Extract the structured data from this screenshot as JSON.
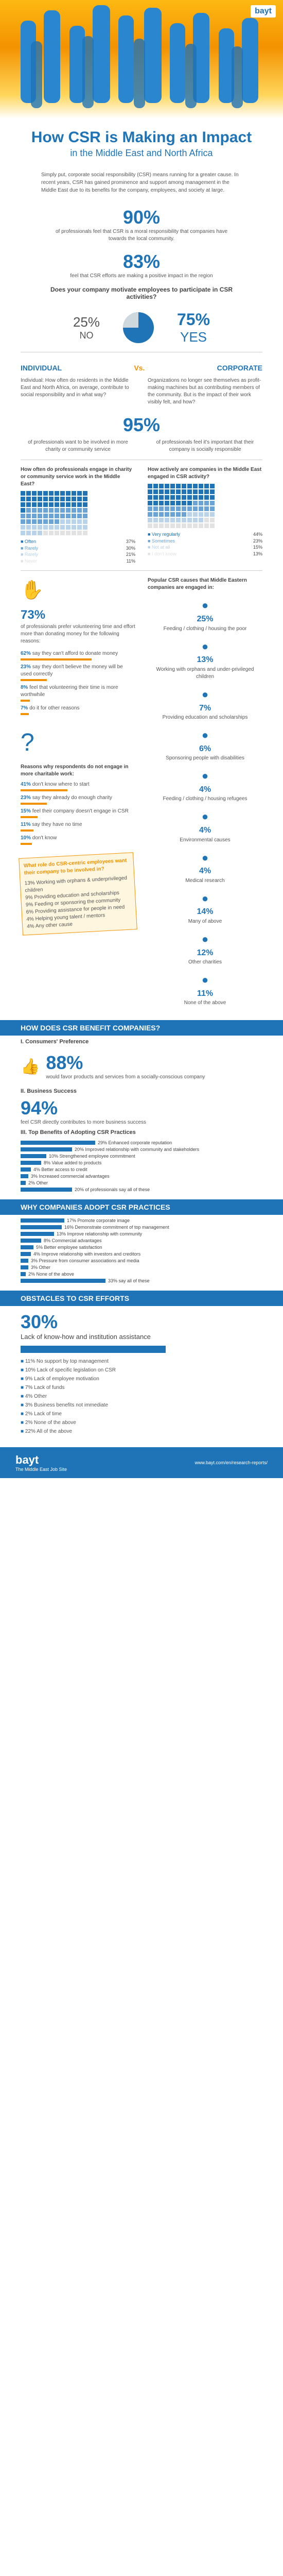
{
  "brand": {
    "logo": "bayt"
  },
  "title": {
    "main": "How CSR is Making an Impact",
    "sub": "in the Middle East and North Africa"
  },
  "intro": "Simply put, corporate social responsibility (CSR) means running for a greater cause. In recent years, CSR has gained prominence and support among management in the Middle East due to its benefits for the company, employees, and society at large.",
  "stats": [
    {
      "value": "90%",
      "text": "of professionals feel that CSR is a moral responsibility that companies have towards the local community."
    },
    {
      "value": "83%",
      "text": "feel that CSR efforts are making a positive impact in the region"
    }
  ],
  "motivate": {
    "question": "Does your company motivate employees to participate in CSR activities?",
    "no_value": "25%",
    "no_label": "NO",
    "yes_value": "75%",
    "yes_label": "YES"
  },
  "ivc": {
    "left": "INDIVIDUAL",
    "vs": "Vs.",
    "right": "CORPORATE"
  },
  "ivc_text": {
    "left": "Individual: How often do residents in the Middle East and North Africa, on average, contribute to social responsibility and in what way?",
    "right": "Organizations no longer see themselves as profit-making machines but as contributing members of the community. But is the impact of their work visibly felt, and how?"
  },
  "p95": {
    "value": "95%",
    "left": "of professionals want to be involved in more charity or community service",
    "right": "of professionals feel it's important that their company is socially responsible"
  },
  "engage": {
    "left_title": "How often do professionals engage in charity or community service work in the Middle East?",
    "left": [
      {
        "label": "Often",
        "v": "37%"
      },
      {
        "label": "Rarely",
        "v": "30%"
      },
      {
        "label": "Rarely",
        "v": "21%"
      },
      {
        "label": "Never",
        "v": "11%"
      }
    ],
    "right_title": "How actively are companies in the Middle East engaged in CSR activity?",
    "right": [
      {
        "label": "Very regularly",
        "v": "44%"
      },
      {
        "label": "Sometimes",
        "v": "23%"
      },
      {
        "label": "Not at all",
        "v": "15%"
      },
      {
        "label": "I don't know",
        "v": "13%"
      }
    ]
  },
  "volunteer": {
    "value": "73%",
    "text": "of professionals prefer volunteering time and effort more than donating money for the following reasons:",
    "reasons": [
      {
        "v": "62%",
        "t": "say they can't afford to donate money"
      },
      {
        "v": "23%",
        "t": "say they don't believe the money will be used correctly"
      },
      {
        "v": "8%",
        "t": "feel that volunteering their time is more worthwhile"
      },
      {
        "v": "7%",
        "t": "do it for other reasons"
      }
    ]
  },
  "notengage": {
    "title": "Reasons why respondents do not engage in more charitable work:",
    "items": [
      {
        "v": "41%",
        "t": "don't know where to start"
      },
      {
        "v": "23%",
        "t": "say they already do enough charity"
      },
      {
        "v": "15%",
        "t": "feel their company doesn't engage in CSR"
      },
      {
        "v": "11%",
        "t": "say they have no time"
      },
      {
        "v": "10%",
        "t": "don't know"
      }
    ]
  },
  "causes": {
    "title": "Popular CSR causes that Middle Eastern companies are engaged in:",
    "items": [
      {
        "v": "25%",
        "t": "Feeding / clothing / housing the poor"
      },
      {
        "v": "13%",
        "t": "Working with orphans and under-privileged children"
      },
      {
        "v": "7%",
        "t": "Providing education and scholarships"
      },
      {
        "v": "6%",
        "t": "Sponsoring people with disabilities"
      },
      {
        "v": "4%",
        "t": "Feeding / clothing / housing refugees"
      },
      {
        "v": "4%",
        "t": "Environmental causes"
      },
      {
        "v": "4%",
        "t": "Medical research"
      },
      {
        "v": "14%",
        "t": "Many of above"
      },
      {
        "v": "12%",
        "t": "Other charities"
      },
      {
        "v": "11%",
        "t": "None of the above"
      }
    ]
  },
  "csr_role": {
    "title": "What role do CSR-centric employees want their company to be involved in?",
    "items": [
      "13% Working with orphans & underprivileged children",
      "9% Providing education and scholarships",
      "9% Feeding or sponsoring the community",
      "6% Providing assistance for people in need",
      "4% Helping young talent / mentors",
      "4% Any other cause"
    ]
  },
  "benefit": {
    "heading": "HOW DOES CSR BENEFIT COMPANIES?",
    "s1": "I. Consumers' Preference",
    "s1v": "88%",
    "s1t": "would favor products and services from a socially-conscious company",
    "s2": "II. Business Success",
    "s2v": "94%",
    "s2t": "feel CSR directly contributes to more business success",
    "s3": "III. Top Benefits of Adopting CSR Practices",
    "bars": [
      {
        "v": 29,
        "t": "29% Enhanced corporate reputation"
      },
      {
        "v": 20,
        "t": "20% Improved relationship with community and stakeholders"
      },
      {
        "v": 10,
        "t": "10% Strengthened employee commitment"
      },
      {
        "v": 8,
        "t": "8% Value added to products"
      },
      {
        "v": 4,
        "t": "4% Better access to credit"
      },
      {
        "v": 3,
        "t": "3% Increased commercial advantages"
      },
      {
        "v": 2,
        "t": "2% Other"
      },
      {
        "v": 20,
        "t": "20% of professionals say all of these"
      }
    ]
  },
  "why": {
    "heading": "WHY COMPANIES ADOPT CSR PRACTICES",
    "bars": [
      {
        "v": 17,
        "t": "17% Promote corporate image"
      },
      {
        "v": 16,
        "t": "16% Demonstrate commitment of top management"
      },
      {
        "v": 13,
        "t": "13% Improve relationship with community"
      },
      {
        "v": 8,
        "t": "8% Commercial advantages"
      },
      {
        "v": 5,
        "t": "5% Better employee satisfaction"
      },
      {
        "v": 4,
        "t": "4% Improve relationship with investors and creditors"
      },
      {
        "v": 3,
        "t": "3% Pressure from consumer associations and media"
      },
      {
        "v": 3,
        "t": "3% Other"
      },
      {
        "v": 2,
        "t": "2% None of the above"
      },
      {
        "v": 33,
        "t": "33% say all of these"
      }
    ]
  },
  "obstacles": {
    "heading": "OBSTACLES TO CSR EFFORTS",
    "top_v": "30%",
    "top_t": "Lack of know-how and institution assistance",
    "items": [
      "11% No support by top management",
      "10% Lack of specific legislation on CSR",
      "9% Lack of employee motivation",
      "7% Lack of funds",
      "4% Other",
      "3% Business benefits not immediate",
      "2% Lack of time",
      "2% None of the above",
      "22% All of the above"
    ]
  },
  "footer": {
    "tag": "The Middle East Job Site",
    "url": "www.bayt.com/en/research-reports/"
  }
}
